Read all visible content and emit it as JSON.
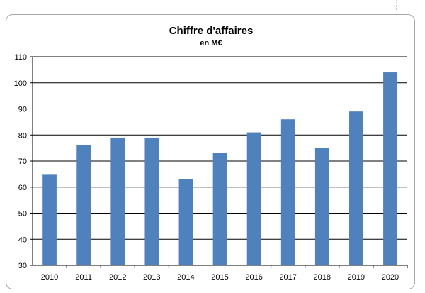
{
  "chart_data": {
    "type": "bar",
    "title": "Chiffre d'affaires",
    "subtitle": "en M€",
    "xlabel": "",
    "ylabel": "",
    "categories": [
      "2010",
      "2011",
      "2012",
      "2013",
      "2014",
      "2015",
      "2016",
      "2017",
      "2018",
      "2019",
      "2020"
    ],
    "values": [
      65,
      76,
      79,
      79,
      63,
      73,
      81,
      86,
      75,
      89,
      104
    ],
    "ylim": [
      30,
      110
    ],
    "yticks": [
      30,
      40,
      50,
      60,
      70,
      80,
      90,
      100,
      110
    ],
    "grid": true,
    "legend": "none",
    "bar_color": "#4f81bd"
  }
}
